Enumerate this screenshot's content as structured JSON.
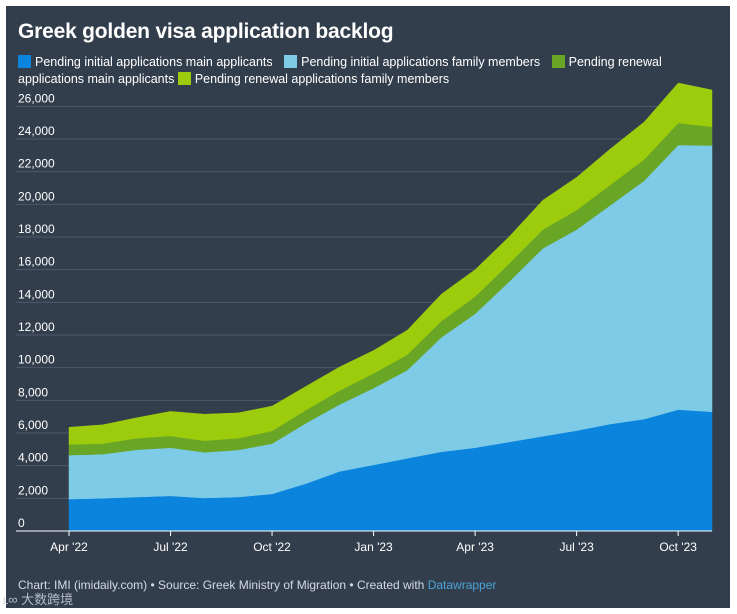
{
  "chart_data": {
    "type": "area",
    "stacked": true,
    "title": "Greek golden visa application backlog",
    "xlabel": "",
    "ylabel": "",
    "ylim": [
      0,
      27000
    ],
    "yticks": [
      0,
      2000,
      4000,
      6000,
      8000,
      10000,
      12000,
      14000,
      16000,
      18000,
      20000,
      22000,
      24000,
      26000
    ],
    "ytick_labels": [
      "0",
      "2,000",
      "4,000",
      "6,000",
      "8,000",
      "10,000",
      "12,000",
      "14,000",
      "16,000",
      "18,000",
      "20,000",
      "22,000",
      "24,000",
      "26,000"
    ],
    "x": [
      "Apr '22",
      "May '22",
      "Jun '22",
      "Jul '22",
      "Aug '22",
      "Sep '22",
      "Oct '22",
      "Nov '22",
      "Dec '22",
      "Jan '23",
      "Feb '23",
      "Mar '23",
      "Apr '23",
      "May '23",
      "Jun '23",
      "Jul '23",
      "Aug '23",
      "Sep '23",
      "Oct '23",
      "Nov '23"
    ],
    "xtick_labels": [
      {
        "index": 0,
        "label": "Apr '22"
      },
      {
        "index": 3,
        "label": "Jul '22"
      },
      {
        "index": 6,
        "label": "Oct '22"
      },
      {
        "index": 9,
        "label": "Jan '23"
      },
      {
        "index": 12,
        "label": "Apr '23"
      },
      {
        "index": 15,
        "label": "Jul '23"
      },
      {
        "index": 18,
        "label": "Oct '23"
      }
    ],
    "series": [
      {
        "name": "Pending initial applications main applicants",
        "color": "#0a84dc",
        "values": [
          1950,
          2000,
          2080,
          2150,
          2020,
          2080,
          2270,
          2900,
          3650,
          4050,
          4450,
          4850,
          5100,
          5450,
          5800,
          6150,
          6550,
          6850,
          7430,
          7300
        ]
      },
      {
        "name": "Pending initial applications family members",
        "color": "#7ecbe7",
        "values": [
          2700,
          2700,
          2900,
          2950,
          2800,
          2880,
          3080,
          3700,
          4100,
          4700,
          5400,
          7000,
          8200,
          9800,
          11500,
          12300,
          13400,
          14600,
          16200,
          16300
        ]
      },
      {
        "name": "Pending renewal applications main applicants",
        "color": "#6aa626",
        "values": [
          650,
          650,
          700,
          720,
          710,
          720,
          780,
          800,
          850,
          900,
          950,
          1000,
          1050,
          1100,
          1150,
          1200,
          1250,
          1300,
          1350,
          1150
        ]
      },
      {
        "name": "Pending renewal applications family members",
        "color": "#9ccc0c",
        "values": [
          1050,
          1150,
          1250,
          1500,
          1620,
          1550,
          1520,
          1450,
          1450,
          1400,
          1500,
          1650,
          1650,
          1650,
          1800,
          2000,
          2200,
          2300,
          2450,
          2250
        ]
      }
    ]
  },
  "footer": {
    "chart_credit": "Chart: IMI (imidaily.com)",
    "separator": "•",
    "source": "Source: Greek Ministry of Migration",
    "created_with": "Created with",
    "tool": "Datawrapper"
  },
  "watermark": "大数跨境"
}
